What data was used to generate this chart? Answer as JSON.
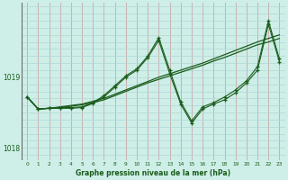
{
  "bg_color": "#ceeee8",
  "line_color": "#1a5c1a",
  "grid_color_v": "#c8a8a8",
  "grid_color_h": "#b0d8d4",
  "xlabel": "Graphe pression niveau de la mer (hPa)",
  "ylabel_ticks": [
    1018,
    1019
  ],
  "xlim": [
    -0.5,
    23.5
  ],
  "ylim": [
    1017.82,
    1020.05
  ],
  "series_smooth": [
    [
      1018.72,
      1018.55,
      1018.56,
      1018.58,
      1018.6,
      1018.62,
      1018.66,
      1018.7,
      1018.76,
      1018.82,
      1018.88,
      1018.94,
      1019.0,
      1019.05,
      1019.1,
      1019.15,
      1019.2,
      1019.26,
      1019.32,
      1019.38,
      1019.44,
      1019.5,
      1019.55,
      1019.6
    ],
    [
      1018.72,
      1018.55,
      1018.56,
      1018.57,
      1018.59,
      1018.61,
      1018.64,
      1018.68,
      1018.74,
      1018.8,
      1018.86,
      1018.92,
      1018.97,
      1019.02,
      1019.07,
      1019.12,
      1019.17,
      1019.23,
      1019.28,
      1019.34,
      1019.4,
      1019.46,
      1019.5,
      1019.55
    ]
  ],
  "series_jagged": [
    [
      1018.72,
      1018.55,
      1018.56,
      1018.56,
      1018.56,
      1018.57,
      1018.63,
      1018.72,
      1018.86,
      1019.0,
      1019.1,
      1019.28,
      1019.52,
      1019.05,
      1018.62,
      1018.35,
      1018.55,
      1018.62,
      1018.68,
      1018.78,
      1018.92,
      1019.1,
      1019.75,
      1019.22
    ],
    [
      1018.72,
      1018.55,
      1018.56,
      1018.57,
      1018.57,
      1018.58,
      1018.64,
      1018.74,
      1018.88,
      1019.02,
      1019.12,
      1019.3,
      1019.56,
      1019.1,
      1018.65,
      1018.38,
      1018.58,
      1018.64,
      1018.72,
      1018.82,
      1018.95,
      1019.15,
      1019.8,
      1019.26
    ]
  ]
}
